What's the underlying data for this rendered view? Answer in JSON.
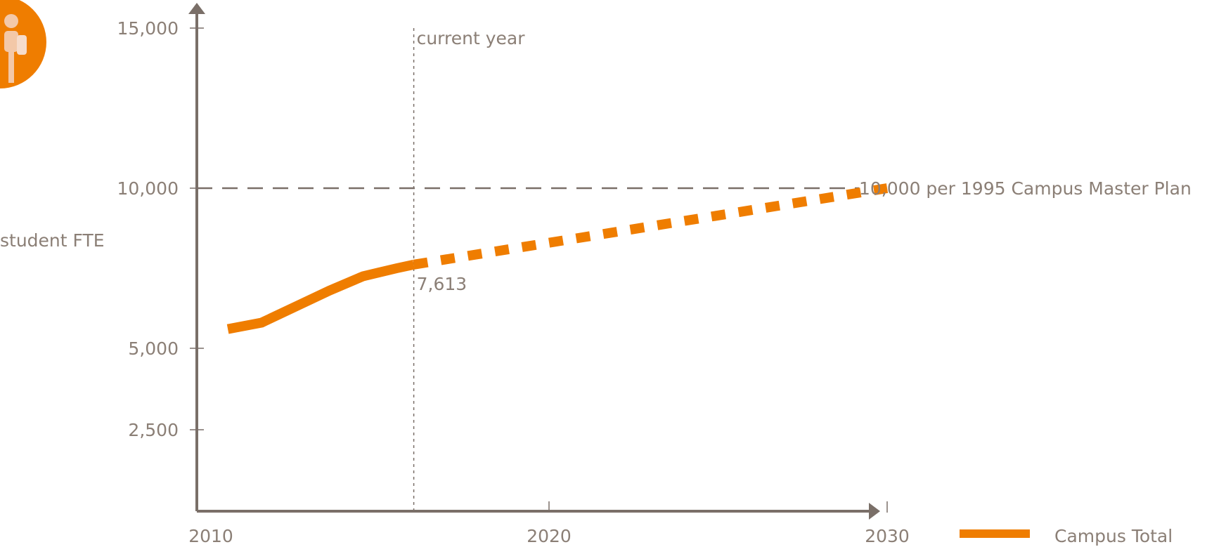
{
  "chart_data": {
    "type": "line",
    "ylabel": "student FTE",
    "xlabel": "",
    "x_ticks": [
      2010,
      2020,
      2030
    ],
    "x_tick_labels": [
      "2010",
      "2020",
      "2030"
    ],
    "y_ticks": [
      2500,
      5000,
      10000,
      15000
    ],
    "y_tick_labels": [
      "2,500",
      "5,000",
      "10,000",
      "15,000"
    ],
    "xlim": [
      2010,
      2030
    ],
    "grid": false,
    "legend_position": "bottom-right",
    "series": [
      {
        "name": "Campus Total",
        "color": "#ef7d00",
        "actual": [
          [
            2010.5,
            5600
          ],
          [
            2011.5,
            5800
          ],
          [
            2012.5,
            6300
          ],
          [
            2013.5,
            6800
          ],
          [
            2014.5,
            7250
          ],
          [
            2015.5,
            7500
          ],
          [
            2016,
            7613
          ]
        ],
        "projected": [
          [
            2016,
            7613
          ],
          [
            2030,
            10000
          ]
        ]
      }
    ],
    "annotations": {
      "current_year": {
        "label": "current year",
        "x": 2016
      },
      "current_value": {
        "label": "7,613",
        "x": 2016,
        "y": 7613
      },
      "reference_line": {
        "label": "10,000 per 1995 Campus Master Plan",
        "y": 10000
      }
    }
  },
  "colors": {
    "accent": "#ef7d00",
    "axis": "#7a6f68",
    "text": "#8b7f76"
  },
  "icon": "student-icon"
}
